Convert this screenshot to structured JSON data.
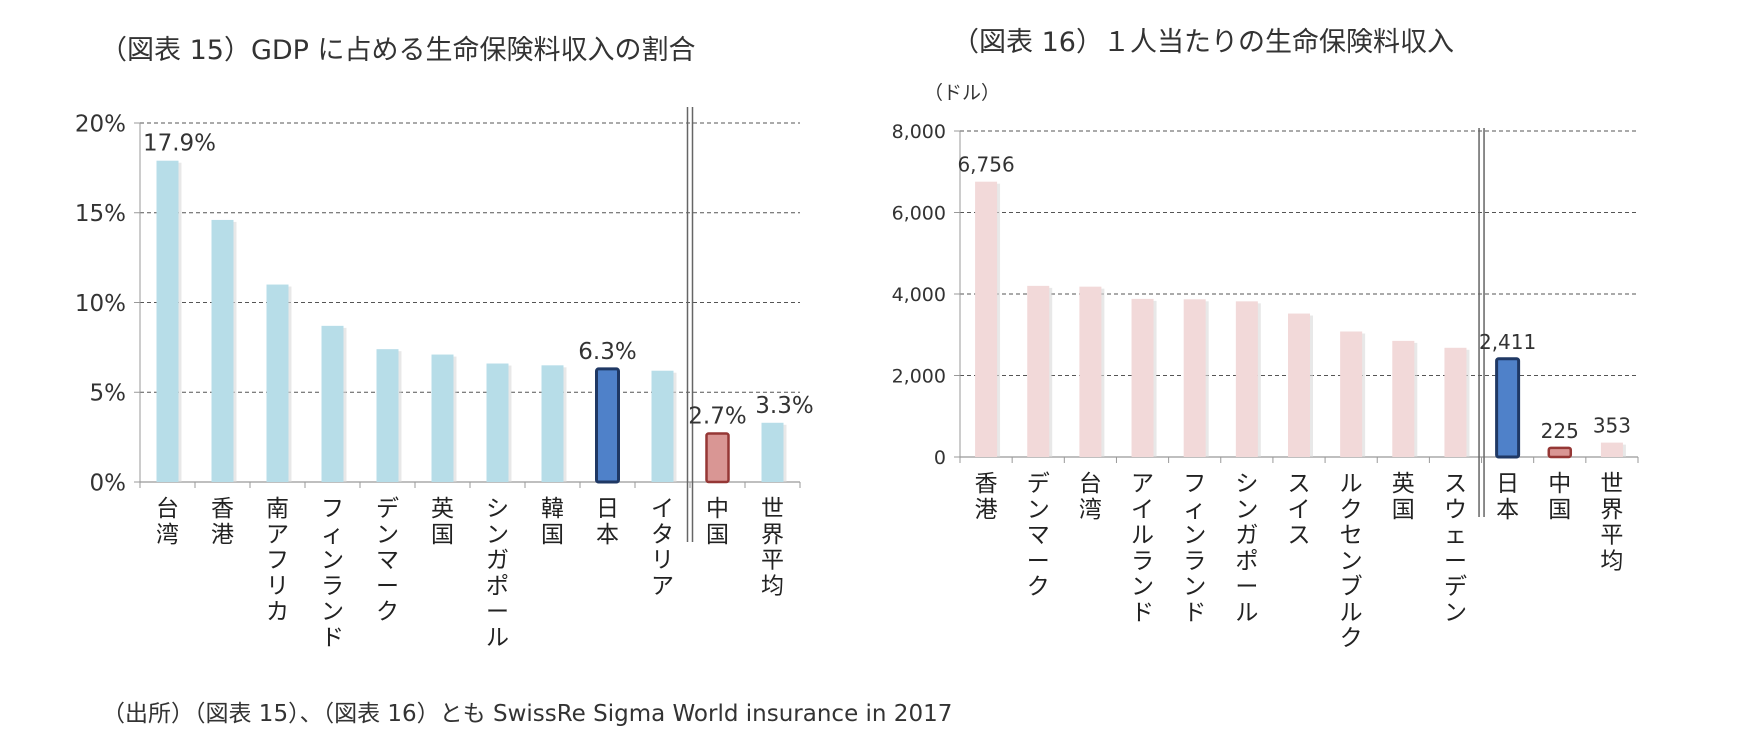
{
  "charts": {
    "left_title": "（図表 15）GDP に占める生命保険料収入の割合",
    "right_title": "（図表 16）１人当たりの生命保険料収入",
    "right_unit": "（ドル）"
  },
  "source": "（出所）（図表 15）、（図表 16）とも SwissRe Sigma  World insurance in 2017",
  "colors": {
    "left_bar": "#b7dde8",
    "right_bar": "#f2d9d9",
    "japan": "#4f81c9",
    "japan_border": "#1f3864",
    "china": "#d99694",
    "china_border": "#953735",
    "world": "#b7dde8",
    "world_right": "#f2d9d9"
  },
  "chart_data": [
    {
      "type": "bar",
      "title": "（図表 15）GDP に占める生命保険料収入の割合",
      "categories": [
        "台湾",
        "香港",
        "南アフリカ",
        "フィンランド",
        "デンマーク",
        "英国",
        "シンガポール",
        "韓国",
        "日本",
        "イタリア",
        "中国",
        "世界平均"
      ],
      "values": [
        17.9,
        14.6,
        11.0,
        8.7,
        7.4,
        7.1,
        6.6,
        6.5,
        6.3,
        6.2,
        2.7,
        3.3
      ],
      "data_labels": {
        "0": "17.9%",
        "8": "6.3%",
        "10": "2.7%",
        "11": "3.3%"
      },
      "highlight": {
        "8": "japan",
        "10": "china"
      },
      "separator_after_index": 9,
      "ylim": [
        0,
        20
      ],
      "yticks": [
        "0%",
        "5%",
        "10%",
        "15%",
        "20%"
      ],
      "grid": "dashed"
    },
    {
      "type": "bar",
      "title": "（図表 16）１人当たりの生命保険料収入",
      "ylabel": "（ドル）",
      "categories": [
        "香港",
        "デンマーク",
        "台湾",
        "アイルランド",
        "フィンランド",
        "シンガポール",
        "スイス",
        "ルクセンブルク",
        "英国",
        "スウェーデン",
        "日本",
        "中国",
        "世界平均"
      ],
      "values": [
        6756,
        4200,
        4180,
        3880,
        3870,
        3820,
        3520,
        3080,
        2850,
        2680,
        2411,
        225,
        353
      ],
      "data_labels": {
        "0": "6,756",
        "10": "2,411",
        "11": "225",
        "12": "353"
      },
      "highlight": {
        "10": "japan",
        "11": "china"
      },
      "separator_after_index": 9,
      "ylim": [
        0,
        8000
      ],
      "yticks": [
        "0",
        "2,000",
        "4,000",
        "6,000",
        "8,000"
      ],
      "grid": "dashed"
    }
  ]
}
